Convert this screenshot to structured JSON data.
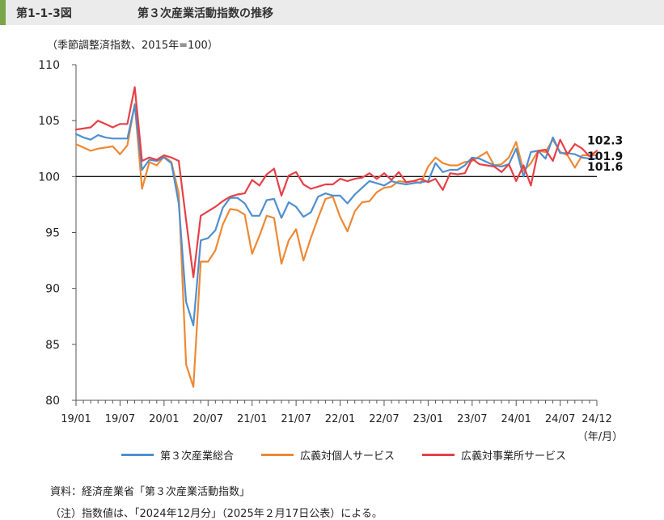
{
  "header": {
    "label": "第1-1-3図",
    "title": "第３次産業活動指数の推移"
  },
  "chart_data": {
    "type": "line",
    "title": "",
    "subtitle": "（季節調整済指数、2015年=100）",
    "xlabel": "",
    "ylabel": "",
    "x_unit": "（年/月）",
    "ylim": [
      80,
      110
    ],
    "yticks": [
      80,
      85,
      90,
      95,
      100,
      105,
      110
    ],
    "reference_line": 100,
    "x_tick_labels": [
      "19/01",
      "19/07",
      "20/01",
      "20/07",
      "21/01",
      "21/07",
      "22/01",
      "22/07",
      "23/01",
      "23/07",
      "24/01",
      "24/07",
      "24/12"
    ],
    "x": [
      "19/01",
      "19/02",
      "19/03",
      "19/04",
      "19/05",
      "19/06",
      "19/07",
      "19/08",
      "19/09",
      "19/10",
      "19/11",
      "19/12",
      "20/01",
      "20/02",
      "20/03",
      "20/04",
      "20/05",
      "20/06",
      "20/07",
      "20/08",
      "20/09",
      "20/10",
      "20/11",
      "20/12",
      "21/01",
      "21/02",
      "21/03",
      "21/04",
      "21/05",
      "21/06",
      "21/07",
      "21/08",
      "21/09",
      "21/10",
      "21/11",
      "21/12",
      "22/01",
      "22/02",
      "22/03",
      "22/04",
      "22/05",
      "22/06",
      "22/07",
      "22/08",
      "22/09",
      "22/10",
      "22/11",
      "22/12",
      "23/01",
      "23/02",
      "23/03",
      "23/04",
      "23/05",
      "23/06",
      "23/07",
      "23/08",
      "23/09",
      "23/10",
      "23/11",
      "23/12",
      "24/01",
      "24/02",
      "24/03",
      "24/04",
      "24/05",
      "24/06",
      "24/07",
      "24/08",
      "24/09",
      "24/10",
      "24/11",
      "24/12"
    ],
    "series": [
      {
        "name": "第３次産業総合",
        "color": "#4f8fcf",
        "values": [
          103.8,
          103.5,
          103.3,
          103.7,
          103.5,
          103.4,
          103.4,
          103.4,
          106.4,
          100.6,
          101.5,
          101.4,
          101.7,
          101.2,
          97.6,
          88.8,
          86.7,
          94.3,
          94.5,
          95.2,
          97.2,
          98.1,
          98.1,
          97.6,
          96.5,
          96.5,
          97.9,
          98.0,
          96.3,
          97.7,
          97.3,
          96.4,
          96.8,
          98.2,
          98.5,
          98.3,
          98.3,
          97.6,
          98.4,
          99.0,
          99.6,
          99.4,
          99.2,
          99.6,
          99.4,
          99.3,
          99.4,
          99.5,
          99.6,
          101.2,
          100.4,
          100.6,
          100.6,
          101.0,
          101.7,
          101.6,
          101.3,
          101.0,
          100.9,
          101.1,
          102.5,
          100.0,
          102.2,
          102.3,
          101.6,
          103.5,
          102.1,
          102.1,
          102.0,
          101.7,
          101.6,
          101.6
        ]
      },
      {
        "name": "広義対個人サービス",
        "color": "#ee8833",
        "values": [
          102.9,
          102.6,
          102.3,
          102.5,
          102.6,
          102.7,
          102.0,
          102.8,
          106.5,
          98.9,
          101.3,
          101.0,
          101.8,
          101.3,
          98.5,
          83.2,
          81.2,
          92.4,
          92.4,
          93.4,
          95.7,
          97.1,
          97.0,
          96.6,
          93.1,
          94.7,
          96.5,
          96.3,
          92.2,
          94.3,
          95.3,
          92.5,
          94.5,
          96.3,
          98.0,
          98.2,
          96.4,
          95.1,
          96.9,
          97.7,
          97.8,
          98.6,
          99.0,
          99.1,
          99.6,
          99.5,
          99.6,
          99.4,
          100.9,
          101.7,
          101.2,
          101.0,
          101.0,
          101.3,
          101.4,
          101.8,
          102.2,
          101.0,
          101.1,
          101.7,
          103.1,
          100.5,
          101.2,
          102.3,
          102.2,
          103.3,
          102.2,
          101.9,
          100.8,
          101.9,
          101.9,
          101.9
        ]
      },
      {
        "name": "広義対事業所サービス",
        "color": "#e64048",
        "values": [
          104.2,
          104.3,
          104.4,
          105.0,
          104.7,
          104.4,
          104.7,
          104.7,
          108.0,
          101.4,
          101.7,
          101.5,
          101.9,
          101.7,
          101.4,
          96.1,
          91.0,
          96.5,
          96.9,
          97.3,
          97.8,
          98.2,
          98.4,
          98.5,
          99.7,
          99.2,
          100.2,
          100.7,
          98.3,
          100.1,
          100.4,
          99.3,
          98.9,
          99.1,
          99.3,
          99.3,
          99.8,
          99.6,
          99.8,
          99.9,
          100.3,
          99.8,
          100.3,
          99.7,
          100.4,
          99.5,
          99.6,
          99.8,
          99.5,
          99.8,
          98.8,
          100.3,
          100.2,
          100.3,
          101.6,
          101.1,
          101.0,
          100.9,
          100.4,
          101.1,
          99.6,
          101.0,
          99.2,
          102.3,
          102.4,
          101.4,
          103.3,
          102.0,
          102.9,
          102.5,
          101.8,
          102.3
        ]
      }
    ],
    "end_labels": [
      "102.3",
      "101.9",
      "101.6"
    ]
  },
  "notes": {
    "source": "資料：経済産業省「第３次産業活動指数」",
    "note": "（注）指数値は、「2024年12月分」（2025年２月17日公表）による。"
  }
}
